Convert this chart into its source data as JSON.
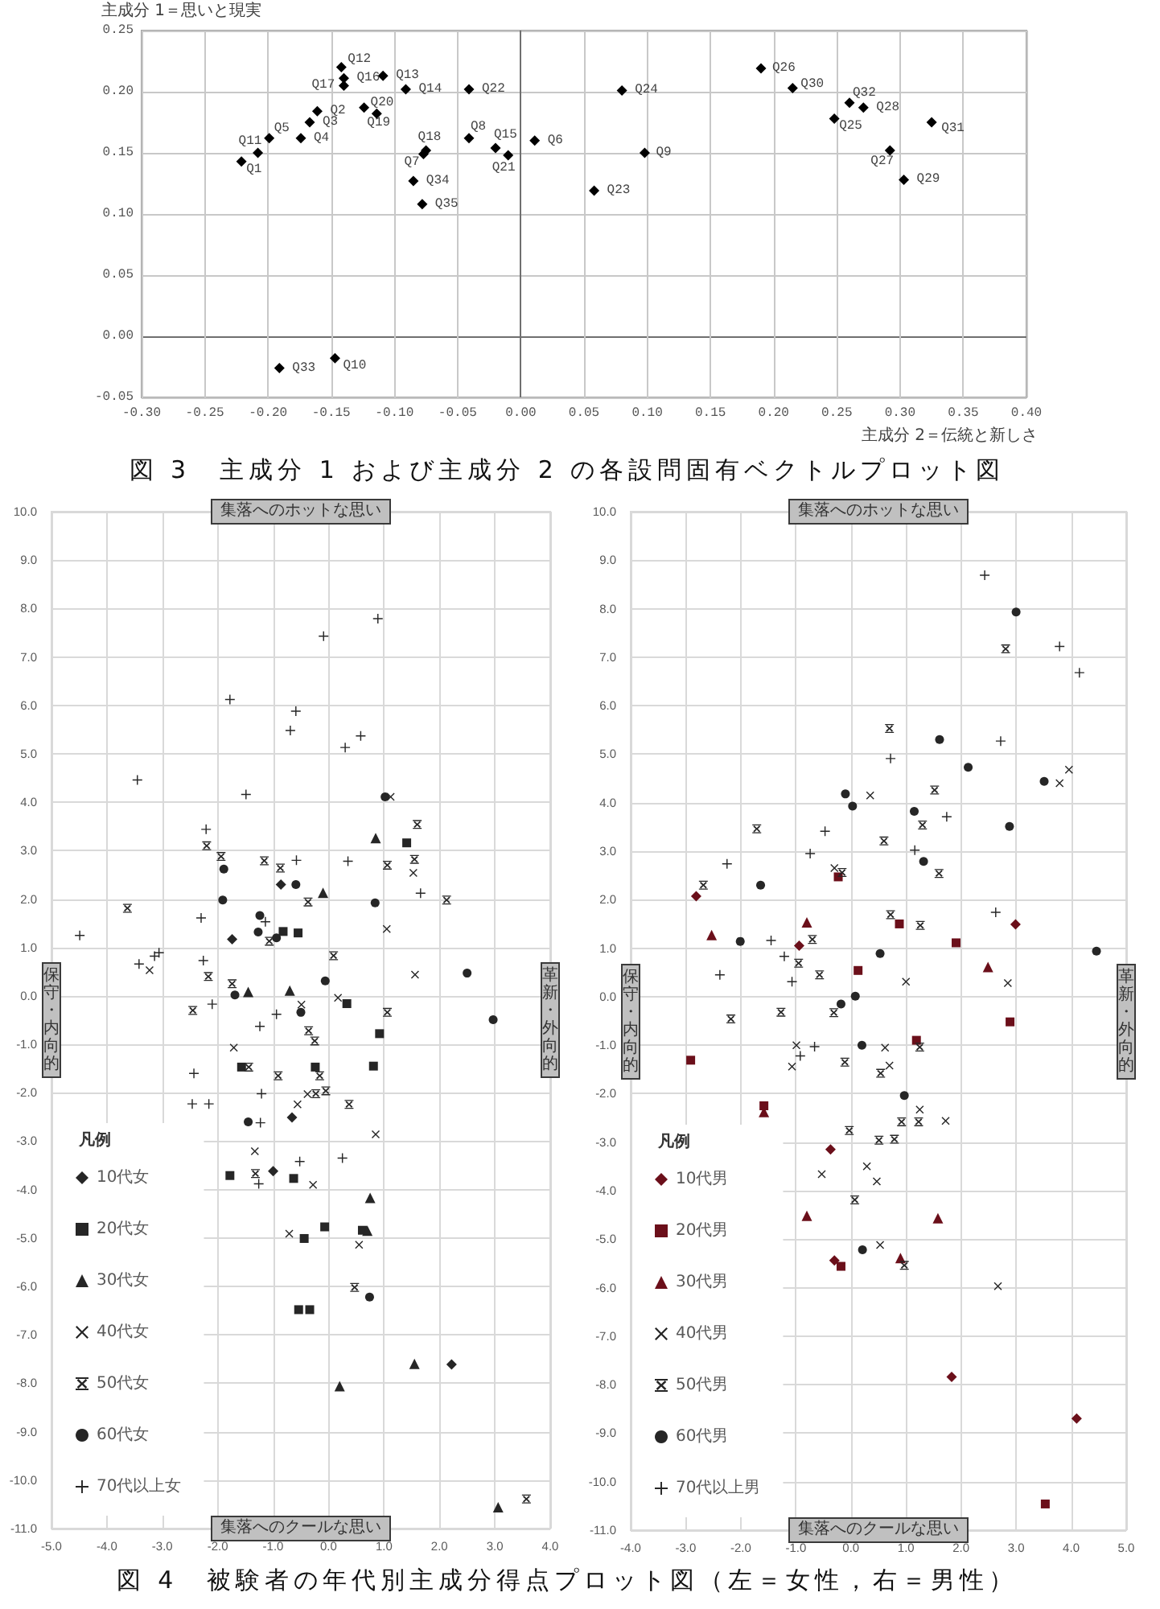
{
  "chart_data": [
    {
      "type": "scatter",
      "annotations": [
        "図 3　主成分 1 および主成分 2 の各設問固有ベクトルプロット図"
      ],
      "xlabel": "主成分 2＝伝統と新しさ",
      "ylabel": "主成分 1＝思いと現実",
      "xlim": [
        -0.3,
        0.4
      ],
      "ylim": [
        -0.05,
        0.25
      ],
      "xticks": [
        {
          "value": -0.3,
          "label": "-0.30"
        },
        {
          "value": -0.25,
          "label": "-0.25"
        },
        {
          "value": -0.2,
          "label": "-0.20"
        },
        {
          "value": -0.15,
          "label": "-0.15"
        },
        {
          "value": -0.1,
          "label": "-0.10"
        },
        {
          "value": -0.05,
          "label": "-0.05"
        },
        {
          "value": 0,
          "label": "0.00"
        },
        {
          "value": 0.05,
          "label": "0.05"
        },
        {
          "value": 0.1,
          "label": "0.10"
        },
        {
          "value": 0.15,
          "label": "0.15"
        },
        {
          "value": 0.2,
          "label": "0.20"
        },
        {
          "value": 0.25,
          "label": "0.25"
        },
        {
          "value": 0.3,
          "label": "0.30"
        },
        {
          "value": 0.35,
          "label": "0.35"
        },
        {
          "value": 0.4,
          "label": "0.40"
        }
      ],
      "yticks": [
        {
          "value": -0.05,
          "label": "-0.05"
        },
        {
          "value": 0,
          "label": "0.00"
        },
        {
          "value": 0.05,
          "label": "0.05"
        },
        {
          "value": 0.1,
          "label": "0.10"
        },
        {
          "value": 0.15,
          "label": "0.15"
        },
        {
          "value": 0.2,
          "label": "0.20"
        },
        {
          "value": 0.25,
          "label": "0.25"
        }
      ],
      "grid": true,
      "marker": "diamond",
      "color": "#000000",
      "x": [
        -0.221,
        -0.161,
        -0.167,
        -0.174,
        -0.199,
        0.011,
        -0.077,
        -0.041,
        0.098,
        -0.147,
        -0.208,
        -0.142,
        -0.109,
        -0.091,
        -0.02,
        -0.14,
        -0.14,
        -0.075,
        -0.114,
        -0.124,
        -0.01,
        -0.041,
        0.058,
        0.08,
        0.248,
        0.19,
        0.292,
        0.271,
        0.303,
        0.215,
        0.325,
        0.26,
        -0.191,
        -0.085,
        -0.078
      ],
      "values": [
        0.143,
        0.184,
        0.175,
        0.162,
        0.162,
        0.16,
        0.149,
        0.162,
        0.15,
        -0.018,
        0.15,
        0.22,
        0.213,
        0.202,
        0.154,
        0.211,
        0.205,
        0.152,
        0.182,
        0.187,
        0.148,
        0.202,
        0.119,
        0.201,
        0.178,
        0.219,
        0.152,
        0.187,
        0.128,
        0.203,
        0.175,
        0.191,
        -0.026,
        0.127,
        0.108
      ],
      "value_labels": [
        "Q1",
        "Q2",
        "Q3",
        "Q4",
        "Q5",
        "Q6",
        "Q7",
        "Q8",
        "Q9",
        "Q10",
        "Q11",
        "Q12",
        "Q13",
        "Q14",
        "Q15",
        "Q16",
        "Q17",
        "Q18",
        "Q19",
        "Q20",
        "Q21",
        "Q22",
        "Q23",
        "Q24",
        "Q25",
        "Q26",
        "Q27",
        "Q28",
        "Q29",
        "Q30",
        "Q31",
        "Q32",
        "Q33",
        "Q34",
        "Q35"
      ]
    },
    {
      "type": "scatter",
      "legend": "bottom left",
      "legend_title": "凡例",
      "annotations": [
        "集落へのホットな思い",
        "集落へのクールな思い",
        "保守・内向的",
        "革新・外向的",
        "図 4　被験者の年代別主成分得点プロット図（左＝女性，右＝男性）"
      ],
      "xlim": [
        -5,
        4
      ],
      "ylim": [
        -11,
        10
      ],
      "xticks": [
        {
          "value": -5,
          "label": "-5.0"
        },
        {
          "value": -4,
          "label": "-4.0"
        },
        {
          "value": -3,
          "label": "-3.0"
        },
        {
          "value": -2,
          "label": "-2.0"
        },
        {
          "value": -1,
          "label": "-1.0"
        },
        {
          "value": 0,
          "label": "0.0"
        },
        {
          "value": 1,
          "label": "1.0"
        },
        {
          "value": 2,
          "label": "2.0"
        },
        {
          "value": 3,
          "label": "3.0"
        },
        {
          "value": 4,
          "label": "4.0"
        }
      ],
      "yticks": [
        {
          "value": -11,
          "label": "-11.0"
        },
        {
          "value": -10,
          "label": "-10.0"
        },
        {
          "value": -9,
          "label": "-9.0"
        },
        {
          "value": -8,
          "label": "-8.0"
        },
        {
          "value": -7,
          "label": "-7.0"
        },
        {
          "value": -6,
          "label": "-6.0"
        },
        {
          "value": -5,
          "label": "-5.0"
        },
        {
          "value": -4,
          "label": "-4.0"
        },
        {
          "value": -3,
          "label": "-3.0"
        },
        {
          "value": -2,
          "label": "-2.0"
        },
        {
          "value": -1,
          "label": "-1.0"
        },
        {
          "value": 0,
          "label": "0.0"
        },
        {
          "value": 1,
          "label": "1.0"
        },
        {
          "value": 2,
          "label": "2.0"
        },
        {
          "value": 3,
          "label": "3.0"
        },
        {
          "value": 4,
          "label": "4.0"
        },
        {
          "value": 5,
          "label": "5.0"
        },
        {
          "value": 6,
          "label": "6.0"
        },
        {
          "value": 7,
          "label": "7.0"
        },
        {
          "value": 8,
          "label": "8.0"
        },
        {
          "value": 9,
          "label": "9.0"
        },
        {
          "value": 10,
          "label": "10.0"
        }
      ],
      "grid": true,
      "series": [
        {
          "name": "10代女",
          "color": "#262626",
          "marker": "diamond",
          "x": [
            -0.86,
            -1.74,
            -0.66,
            -1.0,
            2.22
          ],
          "values": [
            2.3,
            1.17,
            -2.51,
            -3.62,
            -7.61
          ]
        },
        {
          "name": "20代女",
          "color": "#262626",
          "marker": "square",
          "x": [
            -0.82,
            -0.55,
            1.41,
            0.33,
            0.92,
            -1.57,
            -0.24,
            0.81,
            -1.78,
            -0.63,
            -0.07,
            -0.44,
            0.61,
            -0.54,
            -0.34
          ],
          "values": [
            1.33,
            1.3,
            3.16,
            -0.16,
            -0.78,
            -1.47,
            -1.47,
            -1.45,
            -3.71,
            -3.77,
            -4.77,
            -5.01,
            -4.84,
            -6.48,
            -6.48
          ]
        },
        {
          "name": "30代女",
          "color": "#262626",
          "marker": "triangle",
          "x": [
            0.85,
            -0.1,
            -1.45,
            -0.7,
            0.75,
            0.7,
            1.55,
            0.2,
            3.06
          ],
          "values": [
            3.26,
            2.13,
            0.08,
            0.11,
            -4.17,
            -4.85,
            -7.6,
            -8.06,
            -10.56
          ]
        },
        {
          "name": "40代女",
          "color": "#262626",
          "marker": "cross",
          "x": [
            -3.23,
            -1.71,
            -0.49,
            0.17,
            1.12,
            1.05,
            1.53,
            1.56,
            -0.56,
            -0.38,
            0.85,
            -1.33,
            -0.28,
            -0.71,
            0.55
          ],
          "values": [
            0.53,
            -1.07,
            -0.18,
            -0.04,
            4.11,
            1.38,
            2.54,
            0.44,
            -2.24,
            -2.03,
            -2.86,
            -3.21,
            -3.9,
            -4.91,
            -5.14
          ]
        },
        {
          "name": "50代女",
          "color": "#262626",
          "marker": "star",
          "x": [
            -3.63,
            -2.2,
            -2.17,
            -2.45,
            -1.94,
            -1.74,
            -1.16,
            -1.07,
            -0.87,
            -0.37,
            -0.36,
            -0.25,
            0.09,
            1.06,
            1.06,
            1.6,
            1.55,
            2.13,
            -1.44,
            -0.91,
            -0.16,
            -0.23,
            -0.05,
            0.37,
            -1.32,
            0.47,
            3.57
          ],
          "values": [
            1.81,
            3.1,
            0.4,
            -0.3,
            2.88,
            0.25,
            2.79,
            1.13,
            2.64,
            1.94,
            -0.72,
            -0.93,
            0.83,
            2.7,
            -0.34,
            3.54,
            2.82,
            1.98,
            -1.47,
            -1.65,
            -1.65,
            -2.02,
            -1.96,
            -2.24,
            -3.67,
            -6.02,
            -10.39
          ]
        },
        {
          "name": "60代女",
          "color": "#262626",
          "marker": "circle",
          "x": [
            -1.89,
            -1.91,
            -1.24,
            -1.27,
            -0.94,
            -0.59,
            -1.69,
            -0.06,
            -0.5,
            1.02,
            0.84,
            2.5,
            2.97,
            -1.45,
            0.74
          ],
          "values": [
            2.62,
            1.98,
            1.66,
            1.32,
            1.2,
            2.3,
            0.02,
            0.31,
            -0.34,
            4.11,
            1.92,
            0.47,
            -0.49,
            -2.6,
            -6.22
          ]
        },
        {
          "name": "70代以上女",
          "color": "#262626",
          "marker": "plus",
          "x": [
            -4.49,
            -3.45,
            -3.42,
            -3.14,
            -3.06,
            -2.21,
            -2.3,
            -2.26,
            -2.1,
            -1.78,
            -1.49,
            -1.24,
            -1.14,
            -0.94,
            -0.69,
            -0.59,
            -0.58,
            -0.09,
            0.3,
            0.35,
            0.58,
            0.89,
            1.66,
            -2.43,
            -2.46,
            -2.16,
            -1.21,
            -1.23,
            -0.52,
            0.25,
            -1.26
          ],
          "values": [
            1.25,
            4.46,
            0.66,
            0.82,
            0.89,
            3.44,
            1.61,
            0.73,
            -0.17,
            6.12,
            4.16,
            -0.63,
            1.53,
            -0.38,
            5.48,
            5.88,
            2.8,
            7.43,
            5.13,
            2.78,
            5.37,
            7.79,
            2.12,
            -1.6,
            -2.23,
            -2.23,
            -2.02,
            -2.62,
            -3.42,
            -3.35,
            -3.88
          ]
        }
      ]
    },
    {
      "type": "scatter",
      "legend": "bottom left",
      "legend_title": "凡例",
      "annotations": [
        "集落へのホットな思い",
        "集落へのクールな思い",
        "保守・内向的",
        "革新・外向的"
      ],
      "xlim": [
        -4,
        5
      ],
      "ylim": [
        -11,
        10
      ],
      "xticks": [
        {
          "value": -4,
          "label": "-4.0"
        },
        {
          "value": -3,
          "label": "-3.0"
        },
        {
          "value": -2,
          "label": "-2.0"
        },
        {
          "value": -1,
          "label": "-1.0"
        },
        {
          "value": 0,
          "label": "0.0"
        },
        {
          "value": 1,
          "label": "1.0"
        },
        {
          "value": 2,
          "label": "2.0"
        },
        {
          "value": 3,
          "label": "3.0"
        },
        {
          "value": 4,
          "label": "4.0"
        },
        {
          "value": 5,
          "label": "5.0"
        }
      ],
      "yticks": [
        {
          "value": -11,
          "label": "-11.0"
        },
        {
          "value": -10,
          "label": "-10.0"
        },
        {
          "value": -9,
          "label": "-9.0"
        },
        {
          "value": -8,
          "label": "-8.0"
        },
        {
          "value": -7,
          "label": "-7.0"
        },
        {
          "value": -6,
          "label": "-6.0"
        },
        {
          "value": -5,
          "label": "-5.0"
        },
        {
          "value": -4,
          "label": "-4.0"
        },
        {
          "value": -3,
          "label": "-3.0"
        },
        {
          "value": -2,
          "label": "-2.0"
        },
        {
          "value": -1,
          "label": "-1.0"
        },
        {
          "value": 0,
          "label": "0.0"
        },
        {
          "value": 1,
          "label": "1.0"
        },
        {
          "value": 2,
          "label": "2.0"
        },
        {
          "value": 3,
          "label": "3.0"
        },
        {
          "value": 4,
          "label": "4.0"
        },
        {
          "value": 5,
          "label": "5.0"
        },
        {
          "value": 6,
          "label": "6.0"
        },
        {
          "value": 7,
          "label": "7.0"
        },
        {
          "value": 8,
          "label": "8.0"
        },
        {
          "value": 9,
          "label": "9.0"
        },
        {
          "value": 10,
          "label": "10.0"
        }
      ],
      "grid": true,
      "series": [
        {
          "name": "10代男",
          "color": "#6b0f1a",
          "marker": "diamond",
          "x": [
            -2.81,
            -0.94,
            2.99,
            -0.37,
            -0.3,
            1.83,
            4.1
          ],
          "values": [
            2.07,
            1.05,
            1.49,
            -3.15,
            -5.44,
            -7.84,
            -8.7
          ]
        },
        {
          "name": "20代男",
          "color": "#6b0f1a",
          "marker": "square",
          "x": [
            -0.23,
            0.88,
            1.91,
            0.13,
            2.89,
            1.19,
            -2.91,
            -1.58,
            -0.18,
            3.53
          ],
          "values": [
            2.47,
            1.5,
            1.11,
            0.54,
            -0.52,
            -0.9,
            -1.31,
            -2.25,
            -5.56,
            -10.46
          ]
        },
        {
          "name": "30代男",
          "color": "#6b0f1a",
          "marker": "triangle",
          "x": [
            -2.53,
            -0.8,
            2.49,
            -1.58,
            -0.8,
            1.58,
            0.9
          ],
          "values": [
            1.27,
            1.53,
            0.61,
            -2.38,
            -4.52,
            -4.57,
            -5.39
          ]
        },
        {
          "name": "40代男",
          "color": "#262626",
          "marker": "cross",
          "x": [
            -0.99,
            -0.3,
            0.35,
            1.0,
            0.62,
            2.85,
            3.79,
            3.96,
            -1.07,
            0.7,
            1.25,
            1.72,
            0.29,
            0.47,
            -0.53,
            0.53,
            2.67
          ],
          "values": [
            -1.0,
            2.65,
            4.15,
            0.31,
            -1.05,
            0.28,
            4.4,
            4.68,
            -1.44,
            -1.42,
            -2.33,
            -2.56,
            -3.5,
            -3.81,
            -3.66,
            -5.12,
            -5.97
          ]
        },
        {
          "name": "50代男",
          "color": "#262626",
          "marker": "star",
          "x": [
            -2.68,
            -1.71,
            -2.18,
            -1.27,
            -0.95,
            -0.7,
            -0.57,
            -0.31,
            -0.16,
            0.7,
            0.6,
            0.72,
            1.25,
            1.3,
            1.26,
            1.52,
            1.6,
            2.81,
            -0.11,
            0.54,
            0.92,
            1.23,
            -0.03,
            0.51,
            0.79,
            0.07,
            0.97
          ],
          "values": [
            2.3,
            3.46,
            -0.46,
            -0.32,
            0.69,
            1.18,
            0.45,
            -0.33,
            2.56,
            5.53,
            3.21,
            1.69,
            -1.04,
            3.54,
            1.47,
            4.26,
            2.54,
            7.17,
            -1.35,
            -1.58,
            -2.58,
            -2.58,
            -2.76,
            -2.96,
            -2.94,
            -4.19,
            -5.54
          ]
        },
        {
          "name": "60代男",
          "color": "#262626",
          "marker": "circle",
          "x": [
            3.0,
            1.61,
            2.13,
            3.51,
            -0.1,
            0.03,
            1.15,
            2.88,
            1.32,
            -1.64,
            -2.01,
            0.53,
            -0.18,
            0.08,
            0.2,
            4.46,
            0.97,
            0.21
          ],
          "values": [
            7.93,
            5.3,
            4.73,
            4.44,
            4.18,
            3.93,
            3.82,
            3.51,
            2.79,
            2.3,
            1.14,
            0.89,
            -0.15,
            0.01,
            -1.0,
            0.94,
            -2.04,
            -5.22
          ]
        },
        {
          "name": "70代以上男",
          "color": "#262626",
          "marker": "plus",
          "x": [
            2.43,
            3.79,
            4.15,
            2.72,
            0.72,
            1.74,
            -0.47,
            -0.74,
            -2.25,
            1.16,
            2.63,
            -1.45,
            -1.21,
            -2.38,
            -1.07,
            -0.66,
            -0.92
          ],
          "values": [
            8.69,
            7.22,
            6.68,
            5.27,
            4.91,
            3.71,
            3.41,
            2.95,
            2.74,
            3.02,
            1.74,
            1.16,
            0.83,
            0.45,
            0.31,
            -1.03,
            -1.22
          ]
        }
      ]
    }
  ]
}
